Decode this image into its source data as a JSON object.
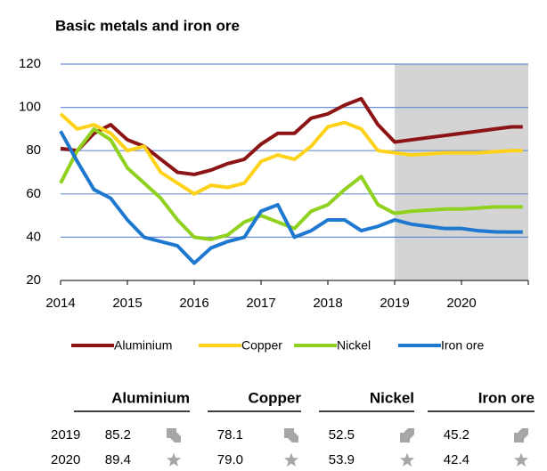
{
  "chart_data": {
    "type": "line",
    "title": "Basic metals and iron ore",
    "x": [
      2014,
      2014.25,
      2014.5,
      2014.75,
      2015,
      2015.25,
      2015.5,
      2015.75,
      2016,
      2016.25,
      2016.5,
      2016.75,
      2017,
      2017.25,
      2017.5,
      2017.75,
      2018,
      2018.25,
      2018.5,
      2018.75,
      2019,
      2019.25,
      2019.5,
      2019.75,
      2020,
      2020.25,
      2020.5,
      2020.75,
      2020.917
    ],
    "series": [
      {
        "name": "Aluminium",
        "color": "#8c1414",
        "values": [
          81,
          80,
          88,
          92,
          85,
          82,
          76,
          70,
          69,
          71,
          74,
          76,
          83,
          88,
          88,
          95,
          97,
          101,
          104,
          92,
          84,
          85,
          86,
          87,
          88,
          89,
          90,
          91,
          91
        ]
      },
      {
        "name": "Copper",
        "color": "#ffd21a",
        "values": [
          97,
          90,
          92,
          88,
          80,
          82,
          70,
          65,
          60,
          64,
          63,
          65,
          75,
          78,
          76,
          82,
          91,
          93,
          90,
          80,
          79,
          78,
          78.5,
          79,
          79,
          79,
          79.5,
          80,
          80
        ]
      },
      {
        "name": "Nickel",
        "color": "#8fd11e",
        "values": [
          65,
          80,
          90,
          85,
          72,
          65,
          58,
          48,
          40,
          39,
          41,
          47,
          50,
          47,
          44,
          52,
          55,
          62,
          68,
          55,
          51,
          52,
          52.5,
          53,
          53,
          53.5,
          54,
          54,
          54
        ]
      },
      {
        "name": "Iron ore",
        "color": "#1f78d0",
        "values": [
          89,
          75,
          62,
          58,
          48,
          40,
          38,
          36,
          28,
          35,
          38,
          40,
          52,
          55,
          40,
          43,
          48,
          48,
          43,
          45,
          48,
          46,
          45,
          44,
          44,
          43,
          42.5,
          42.4,
          42.4
        ]
      }
    ],
    "xlim": [
      2014,
      2021
    ],
    "xticks": [
      2014,
      2015,
      2016,
      2017,
      2018,
      2019,
      2020
    ],
    "ylim": [
      20,
      120
    ],
    "yticks": [
      20,
      40,
      60,
      80,
      100,
      120
    ],
    "grid": true,
    "legend": "bottom",
    "forecast_shade": [
      2019,
      2021
    ]
  },
  "table": {
    "headers": [
      "Aluminium",
      "Copper",
      "Nickel",
      "Iron ore"
    ],
    "rows": [
      [
        "2019",
        "85.2",
        "78.1",
        "52.5",
        "45.2"
      ],
      [
        "2020",
        "89.4",
        "79.0",
        "53.9",
        "42.4"
      ]
    ]
  }
}
